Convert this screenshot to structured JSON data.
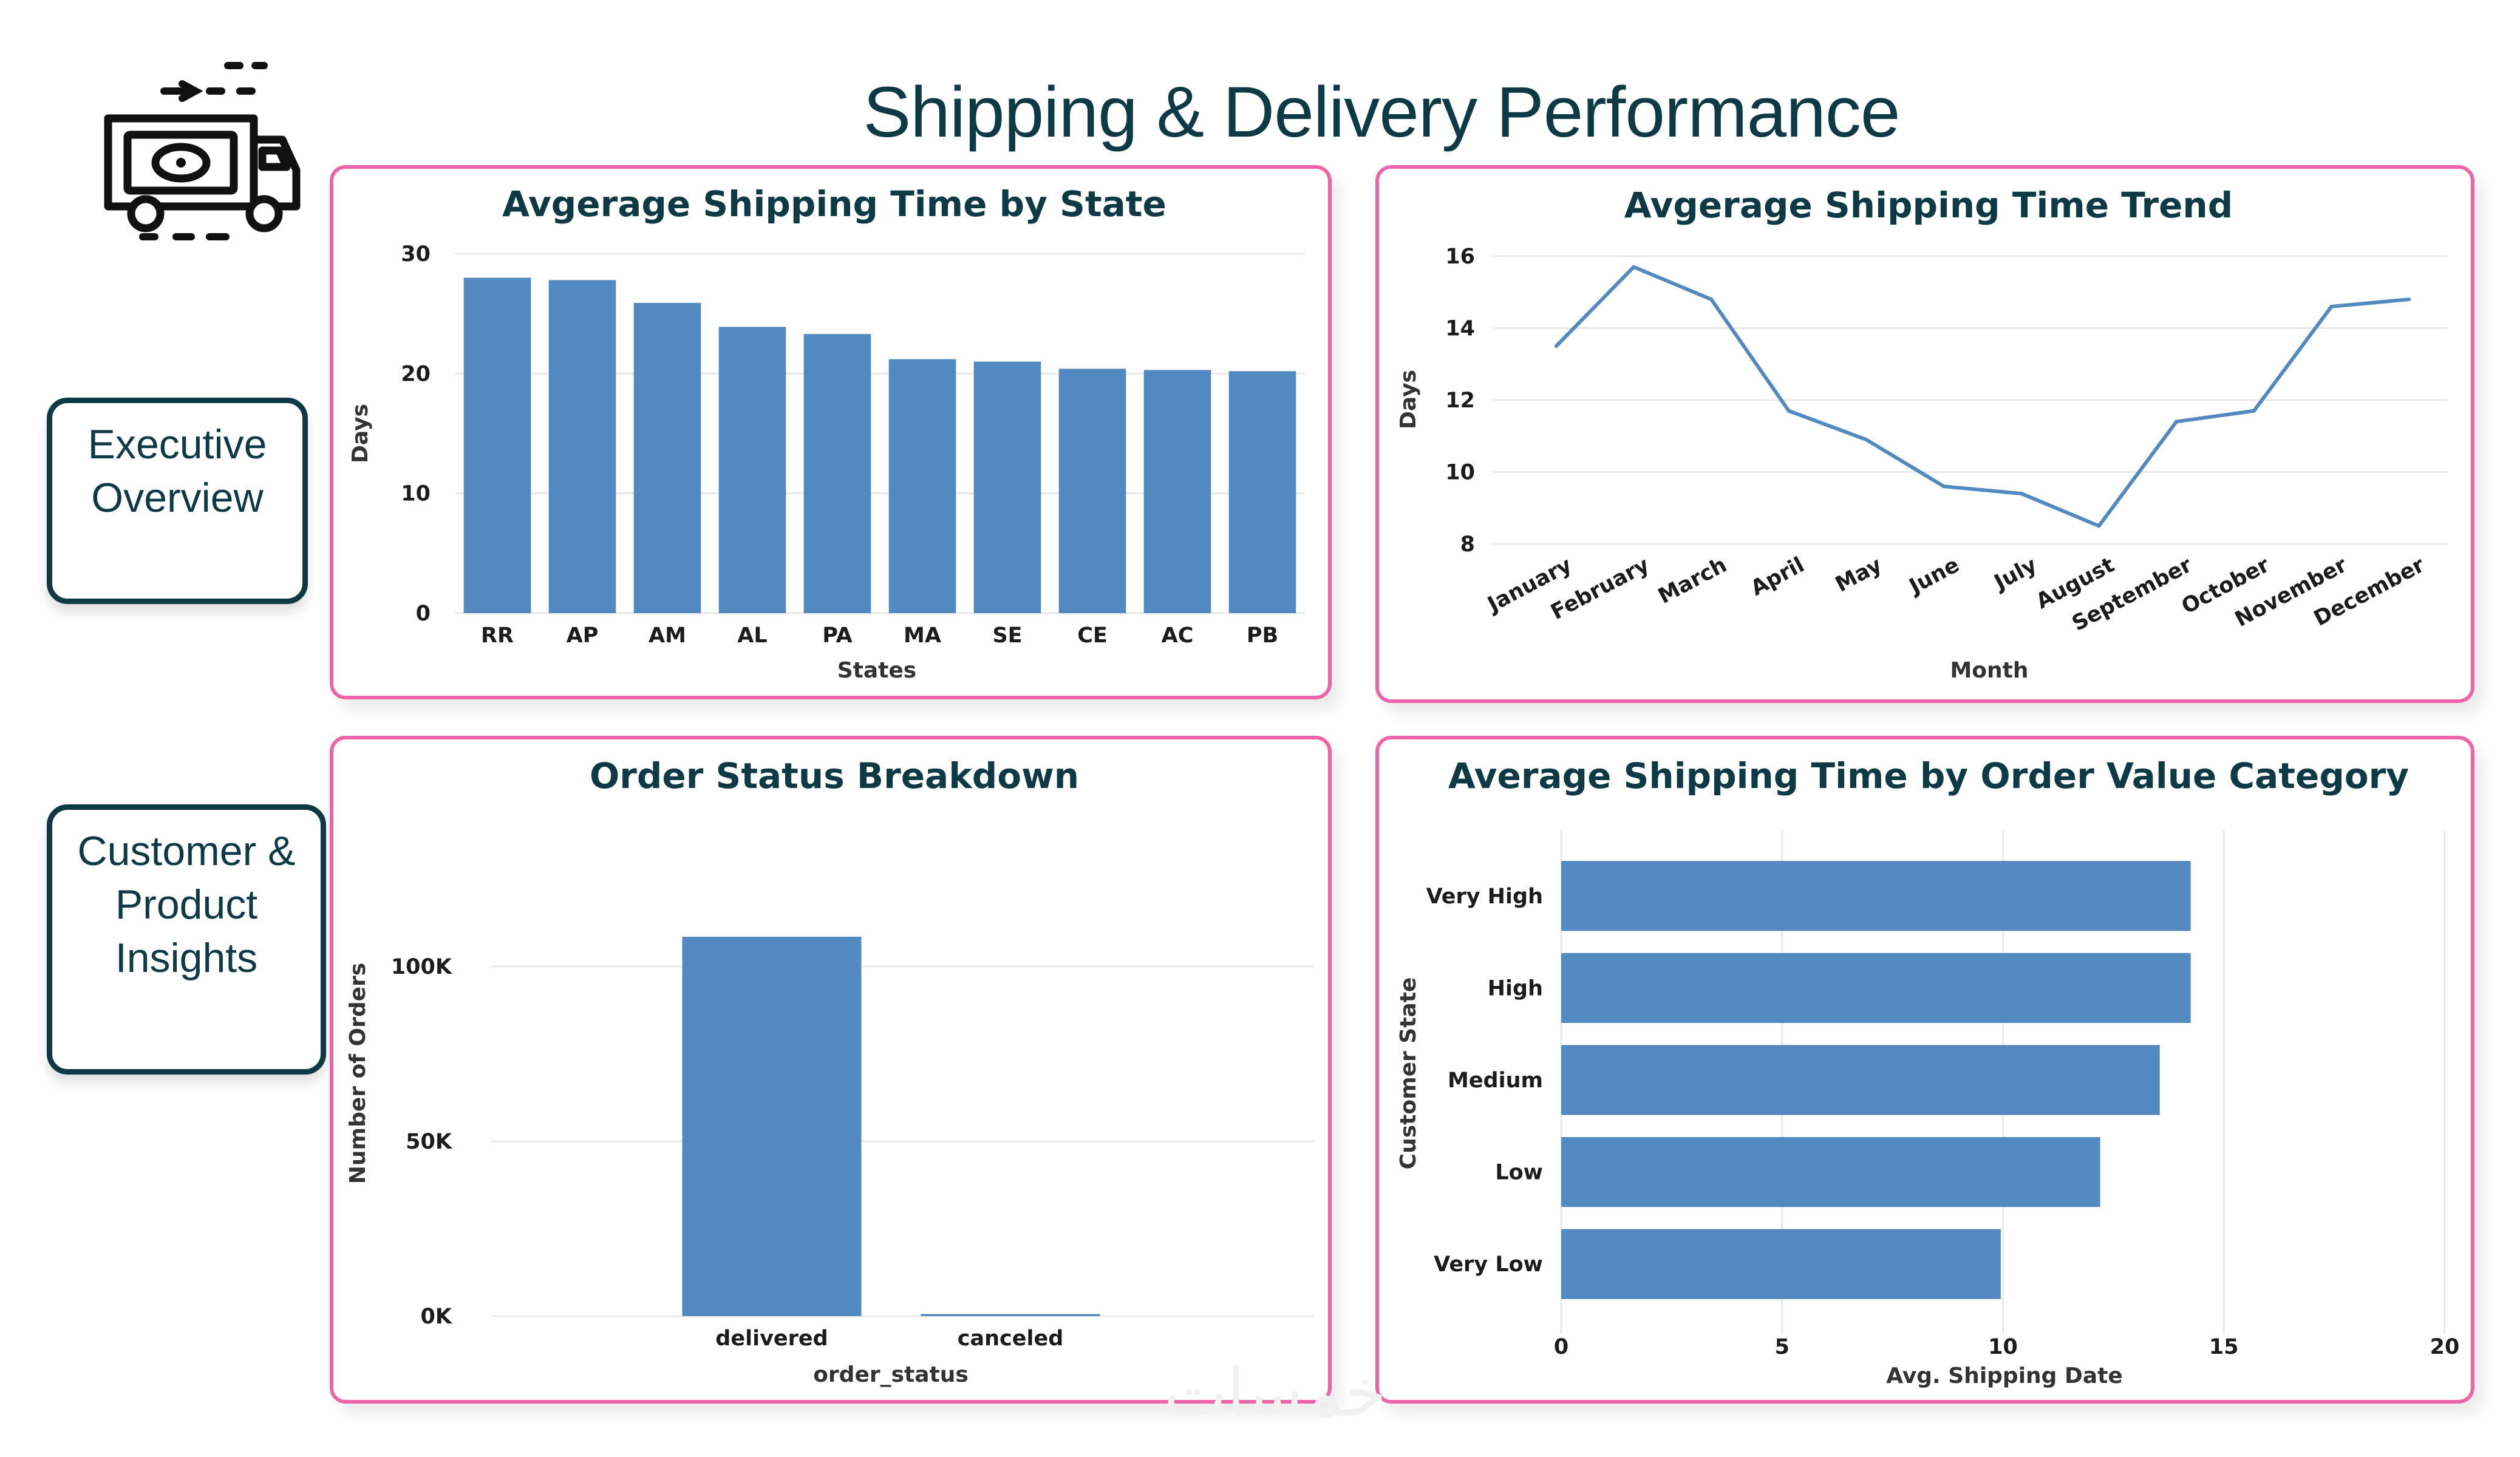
{
  "page": {
    "title": "Shipping & Delivery Performance"
  },
  "nav": {
    "executive": "Executive\nOverview",
    "customer": "Customer &\nProduct\nInsights"
  },
  "watermark": "خمسات",
  "colors": {
    "bar": "#5289c0",
    "card_border": "#ee64ab",
    "title": "#0e3a45"
  },
  "icons": {
    "logo": "delivery-truck-icon"
  },
  "chart_data": [
    {
      "id": "state",
      "type": "bar",
      "title": "Avgerage Shipping Time by State",
      "xlabel": "States",
      "ylabel": "Days",
      "categories": [
        "RR",
        "AP",
        "AM",
        "AL",
        "PA",
        "MA",
        "SE",
        "CE",
        "AC",
        "PB"
      ],
      "values": [
        28.0,
        27.8,
        25.9,
        23.9,
        23.3,
        21.2,
        21.0,
        20.4,
        20.3,
        20.2
      ],
      "ylim": [
        0,
        30
      ],
      "yticks": [
        "0",
        "10",
        "20",
        "30"
      ],
      "grid": true
    },
    {
      "id": "trend",
      "type": "line",
      "title": "Avgerage Shipping Time Trend",
      "xlabel": "Month",
      "ylabel": "Days",
      "x": [
        "January",
        "February",
        "March",
        "April",
        "May",
        "June",
        "July",
        "August",
        "September",
        "October",
        "November",
        "December"
      ],
      "values": [
        13.5,
        15.7,
        14.8,
        11.7,
        10.9,
        9.6,
        9.4,
        8.5,
        11.4,
        11.7,
        14.6,
        14.8
      ],
      "ylim": [
        8,
        16
      ],
      "yticks": [
        "8",
        "10",
        "12",
        "14",
        "16"
      ],
      "grid": true
    },
    {
      "id": "status",
      "type": "bar",
      "title": "Order Status Breakdown",
      "xlabel": "order_status",
      "ylabel": "Number of Orders",
      "categories": [
        "delivered",
        "canceled"
      ],
      "values": [
        108500,
        600
      ],
      "ylim": [
        0,
        125000
      ],
      "yticks": [
        "0K",
        "50K",
        "100K"
      ],
      "grid": true
    },
    {
      "id": "value",
      "type": "bar",
      "orientation": "horizontal",
      "title": "Average Shipping Time by Order Value Category",
      "xlabel": "Avg. Shipping Date",
      "ylabel": "Customer State",
      "categories": [
        "Very High",
        "High",
        "Medium",
        "Low",
        "Very Low"
      ],
      "values": [
        14.25,
        14.25,
        13.55,
        12.2,
        9.95
      ],
      "xlim": [
        0,
        20
      ],
      "xticks": [
        "0",
        "5",
        "10",
        "15",
        "20"
      ],
      "grid": true
    }
  ]
}
